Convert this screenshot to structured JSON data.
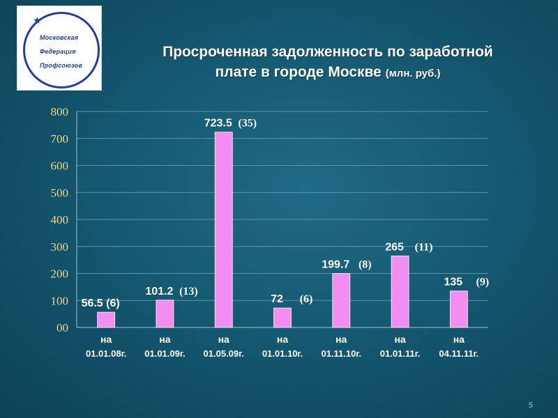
{
  "logo": {
    "line1": "Московская",
    "line2": "Федерация",
    "line3": "Профсоюзов"
  },
  "slide": {
    "title_line1": "Просроченная задолженность по заработной",
    "title_line2": "плате в городе Москве",
    "title_unit": "(млн. руб.)",
    "page_number": "5"
  },
  "colors": {
    "bar": "#f28ef2",
    "axis_text": "#e7d68a",
    "label_text": "#ffffff",
    "background": "#13546c"
  },
  "chart_data": {
    "type": "bar",
    "ylim": [
      0,
      800
    ],
    "yticks": [
      "00",
      "100",
      "200",
      "300",
      "400",
      "500",
      "600",
      "700",
      "800"
    ],
    "grid": true,
    "categories": [
      "на 01.01.08г.",
      "на 01.01.09г.",
      "на 01.05.09г.",
      "на 01.01.10г.",
      "на 01.11.10г.",
      "на 01.01.11г.",
      "на 04.11.11г."
    ],
    "values": [
      56.5,
      101.2,
      723.5,
      72,
      199.7,
      265,
      135
    ],
    "labels": [
      "56.5 (6)",
      "101.2",
      "723.5",
      "72",
      "199.7",
      "265",
      "135"
    ],
    "counts": [
      "",
      "(13)",
      "(35)",
      "(6)",
      "(8)",
      "(11)",
      "(9)"
    ]
  }
}
